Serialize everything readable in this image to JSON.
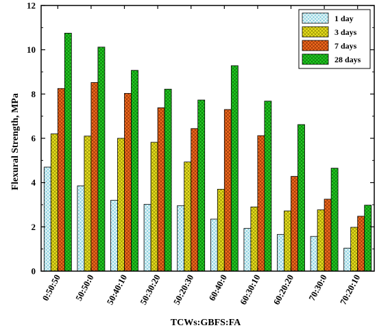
{
  "chart_data": {
    "type": "bar",
    "title": "",
    "xlabel": "TCWs:GBFS:FA",
    "ylabel": "Flexural Strength, MPa",
    "ylim": [
      0,
      12
    ],
    "yticks": [
      0,
      2,
      4,
      6,
      8,
      10,
      12
    ],
    "grid": false,
    "legend_position": "top-right",
    "categories": [
      "0:50:50",
      "50:50:0",
      "50:40:10",
      "50:30:20",
      "50:20:30",
      "60:40:0",
      "60:30:10",
      "60:20:20",
      "70:30:0",
      "70:20:10"
    ],
    "series": [
      {
        "name": "1 day",
        "color": "#8fd3e0",
        "values": [
          4.7,
          3.85,
          3.2,
          3.02,
          2.96,
          2.35,
          1.93,
          1.66,
          1.57,
          1.04
        ]
      },
      {
        "name": "3 days",
        "color": "#e8e020",
        "values": [
          6.2,
          6.1,
          6.0,
          5.82,
          4.93,
          3.7,
          2.9,
          2.72,
          2.77,
          1.98
        ]
      },
      {
        "name": "7 days",
        "color": "#f06a20",
        "values": [
          8.25,
          8.52,
          8.03,
          7.38,
          6.44,
          7.3,
          6.12,
          4.28,
          3.25,
          2.48
        ]
      },
      {
        "name": "28 days",
        "color": "#22cc22",
        "values": [
          10.75,
          10.12,
          9.07,
          8.22,
          7.73,
          9.28,
          7.68,
          6.62,
          4.65,
          2.98
        ]
      }
    ]
  }
}
